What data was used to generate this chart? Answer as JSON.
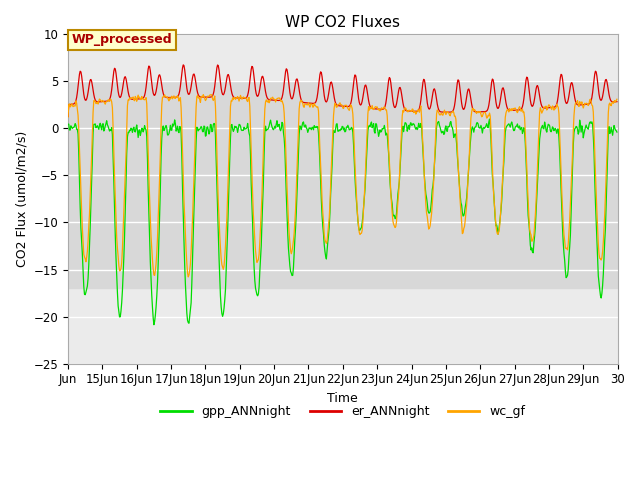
{
  "title": "WP CO2 Fluxes",
  "xlabel": "Time",
  "ylabel_text": "CO2 Flux (umol/m2/s)",
  "ylim": [
    -25,
    10
  ],
  "xlim_start": 14.0,
  "xlim_end": 30.0,
  "xtick_positions": [
    14,
    15,
    16,
    17,
    18,
    19,
    20,
    21,
    22,
    23,
    24,
    25,
    26,
    27,
    28,
    29,
    30
  ],
  "xtick_labels": [
    "Jun",
    "15Jun",
    "16Jun",
    "17Jun",
    "18Jun",
    "19Jun",
    "20Jun",
    "21Jun",
    "22Jun",
    "23Jun",
    "24Jun",
    "25Jun",
    "26Jun",
    "27Jun",
    "28Jun",
    "29Jun",
    "30"
  ],
  "color_green": "#00DD00",
  "color_red": "#DD0000",
  "color_orange": "#FFA500",
  "legend_labels": [
    "gpp_ANNnight",
    "er_ANNnight",
    "wc_gf"
  ],
  "annotation_text": "WP_processed",
  "annotation_color": "#AA0000",
  "annotation_bg": "#FFFFCC",
  "annotation_border": "#BB8800",
  "plot_bg": "#EBEBEB",
  "band_color": "#D8D8D8",
  "grid_color": "white",
  "title_fontsize": 11,
  "axis_fontsize": 9,
  "tick_fontsize": 8.5,
  "legend_fontsize": 9
}
